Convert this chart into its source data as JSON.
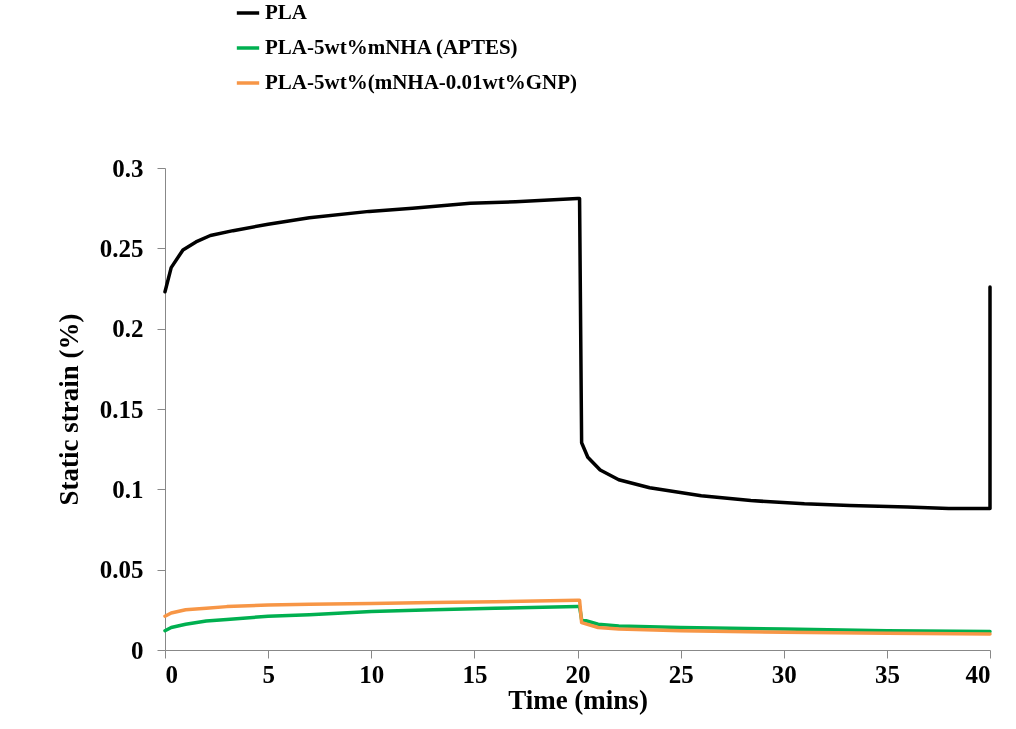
{
  "chart_data": {
    "type": "line",
    "xlabel": "Time (mins)",
    "ylabel": "Static strain (%)",
    "xlim": [
      0,
      40
    ],
    "xticks": [
      0,
      5,
      10,
      15,
      20,
      25,
      30,
      35,
      40
    ],
    "ylim": [
      0,
      0.3
    ],
    "yticks": [
      0,
      0.05,
      0.1,
      0.15,
      0.2,
      0.25,
      0.3
    ],
    "grid": false,
    "legend": "top left",
    "marker": "none",
    "line_style": "solid",
    "series": [
      {
        "name": "PLA",
        "color": "#000000",
        "x": [
          0,
          0.3,
          0.87,
          1.5,
          2.2,
          3.3,
          5,
          7,
          9.9,
          12,
          14.8,
          17,
          20,
          20.1,
          20.2,
          20.5,
          21.1,
          22,
          23.5,
          26,
          28.4,
          31,
          33.2,
          36,
          38,
          40,
          40
        ],
        "values": [
          0.223,
          0.238,
          0.249,
          0.254,
          0.258,
          0.261,
          0.265,
          0.269,
          0.273,
          0.275,
          0.278,
          0.279,
          0.281,
          0.281,
          0.129,
          0.12,
          0.112,
          0.106,
          0.101,
          0.096,
          0.093,
          0.091,
          0.09,
          0.089,
          0.088,
          0.088,
          0.226
        ]
      },
      {
        "name": "PLA-5wt%mNHA (APTES)",
        "color": "#00b050",
        "x": [
          0,
          0.3,
          1,
          2,
          3,
          5,
          7,
          10,
          13,
          16,
          20,
          20.1,
          20.2,
          21,
          22,
          25,
          30,
          35,
          40
        ],
        "values": [
          0.012,
          0.014,
          0.016,
          0.018,
          0.019,
          0.021,
          0.022,
          0.024,
          0.025,
          0.026,
          0.027,
          0.027,
          0.019,
          0.016,
          0.015,
          0.014,
          0.013,
          0.012,
          0.0115
        ]
      },
      {
        "name": "PLA-5wt%(mNHA-0.01wt%GNP)",
        "color": "#f79646",
        "x": [
          0,
          0.3,
          1,
          2,
          3,
          5,
          7,
          10,
          13,
          16,
          20,
          20.1,
          20.2,
          21,
          22,
          25,
          30,
          35,
          40
        ],
        "values": [
          0.021,
          0.023,
          0.025,
          0.026,
          0.027,
          0.028,
          0.0285,
          0.029,
          0.0295,
          0.03,
          0.031,
          0.031,
          0.017,
          0.014,
          0.013,
          0.012,
          0.011,
          0.0105,
          0.01
        ]
      }
    ]
  }
}
